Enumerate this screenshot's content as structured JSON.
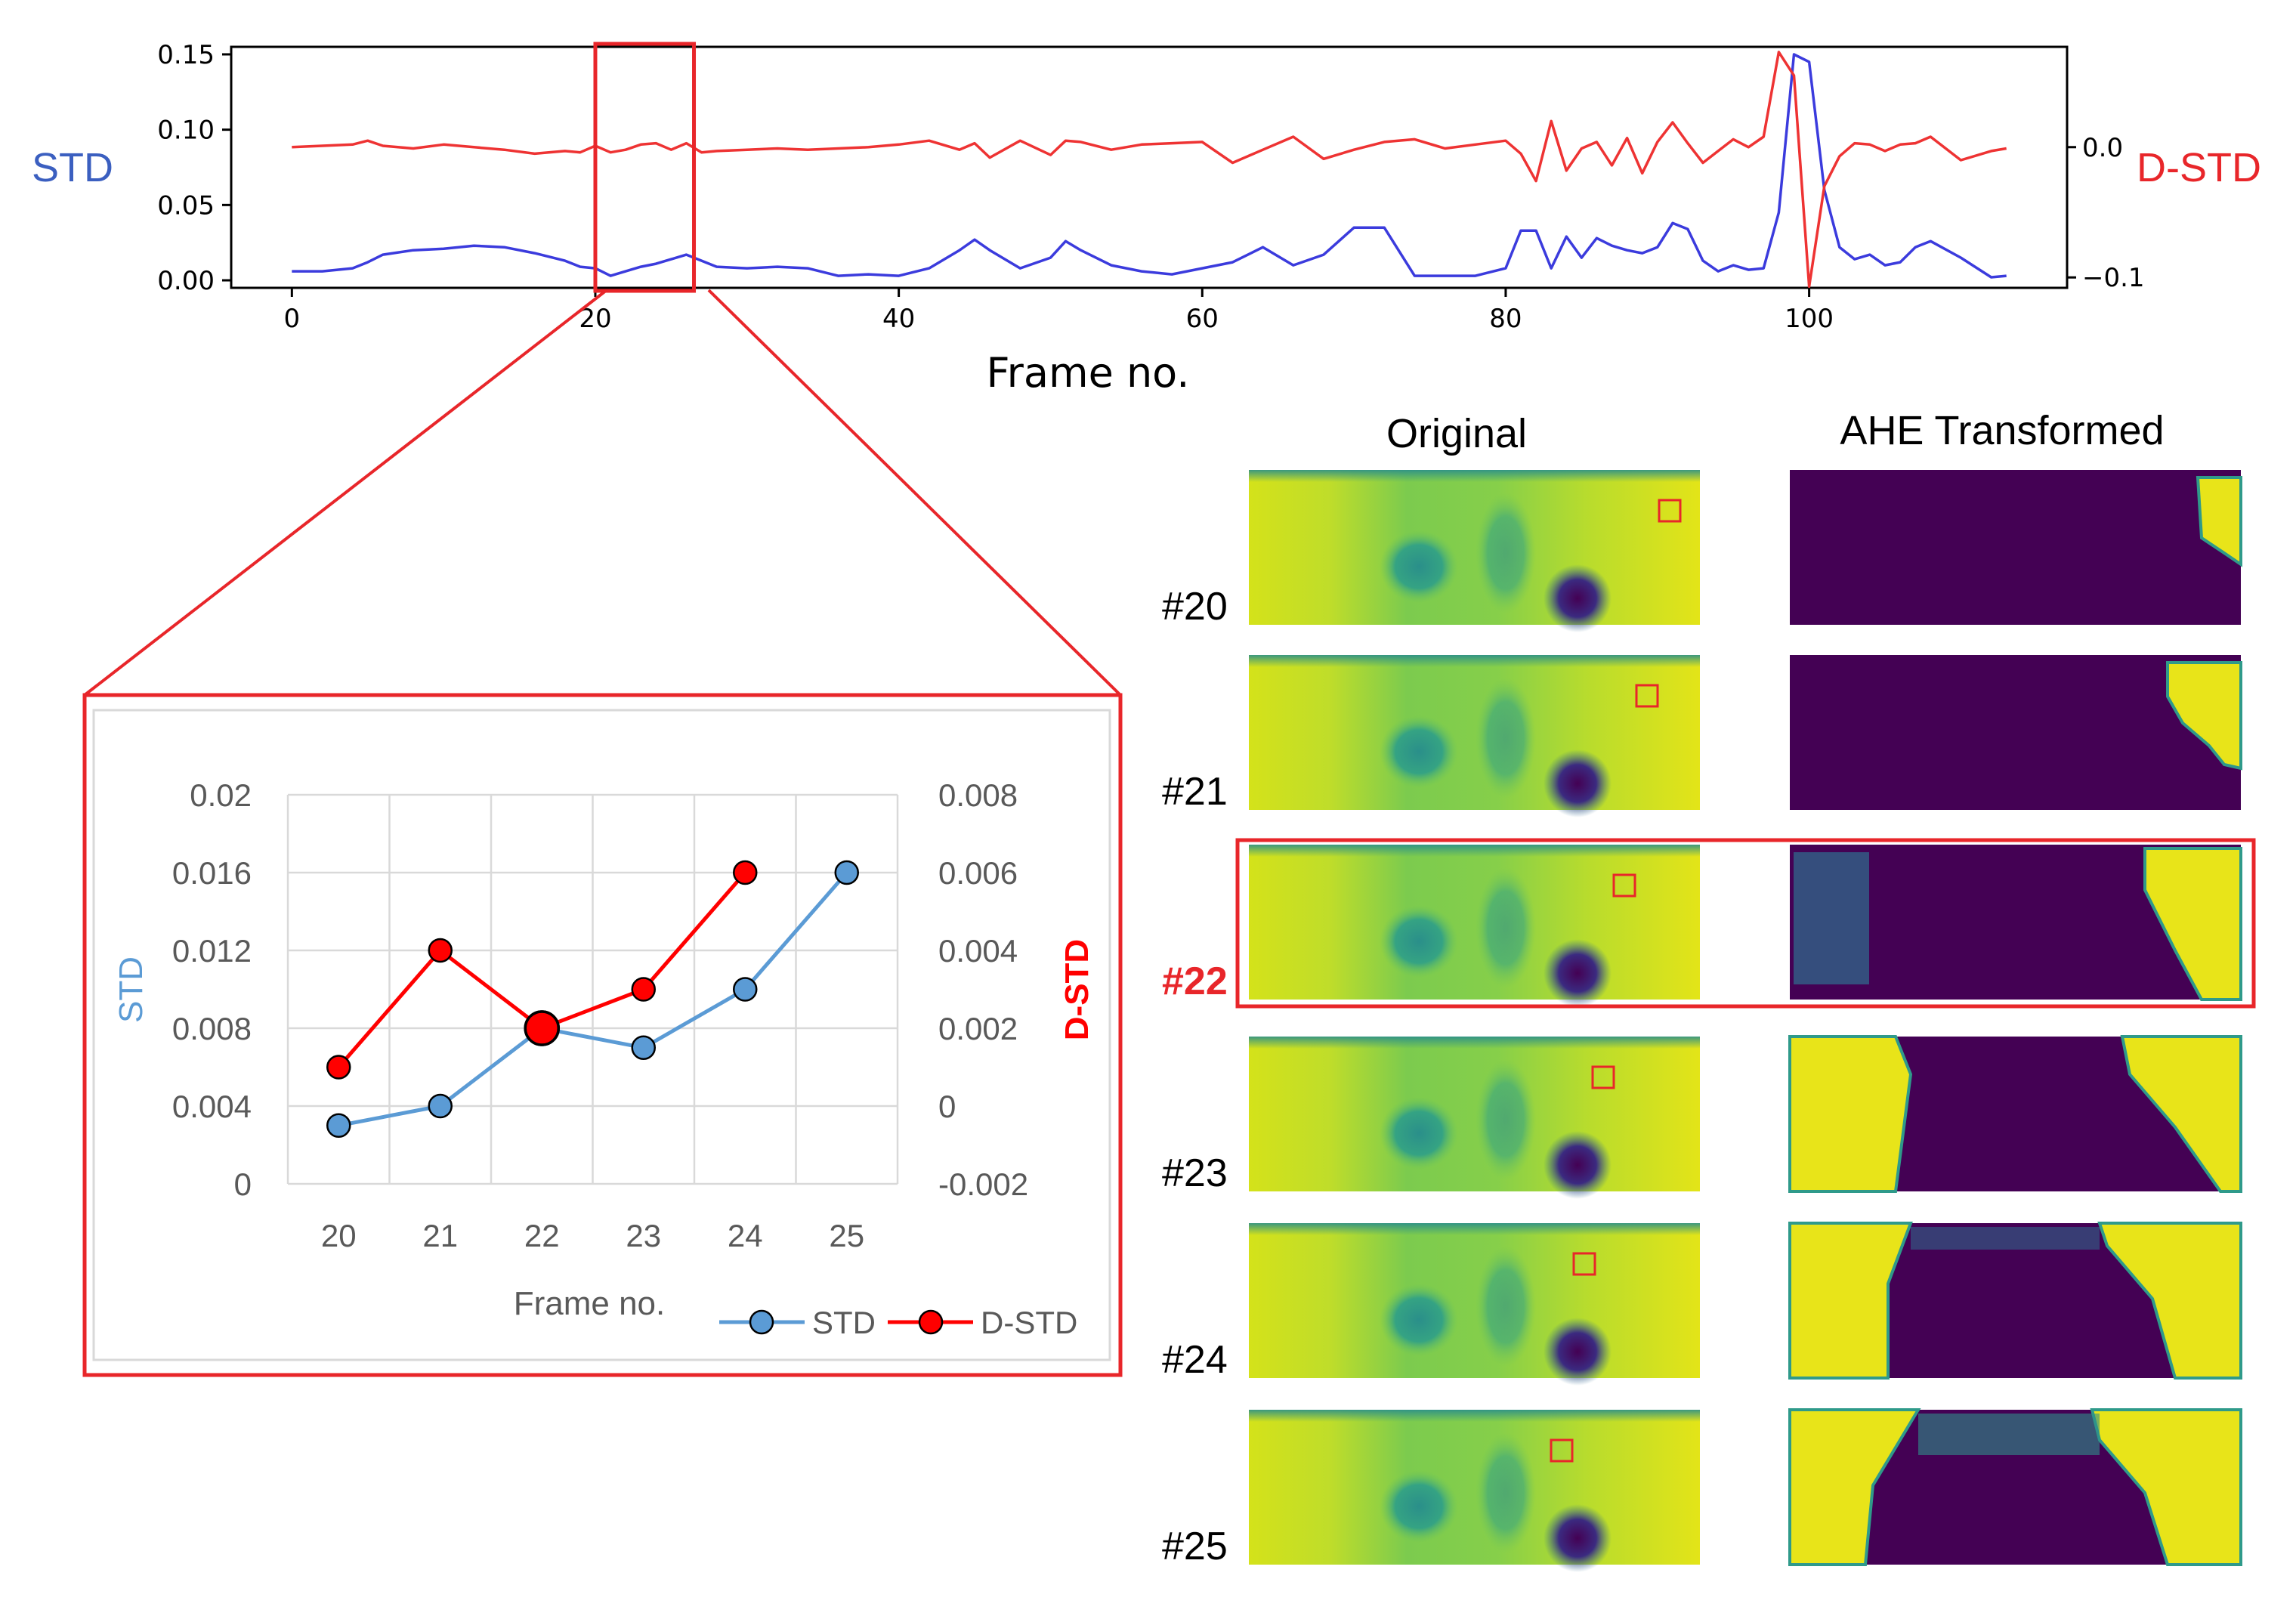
{
  "colors": {
    "std_top": "#3b3bdd",
    "dstd_top": "#ee3333",
    "std_inset": "#5b9bd5",
    "dstd_inset": "#ff0000",
    "highlight": "#e8262a",
    "viridis_dark": "#440154",
    "viridis_yellow": "#e8e419",
    "viridis_green": "#9ad43a",
    "viridis_teal": "#2f9a8a"
  },
  "chart_data": [
    {
      "type": "line",
      "xlabel": "Frame no.",
      "ylabel_left": "STD",
      "ylabel_right": "D-STD",
      "xlim": [
        -4,
        117
      ],
      "xticks": [
        "0",
        "20",
        "40",
        "60",
        "80",
        "100"
      ],
      "ylim_left": [
        -0.005,
        0.155
      ],
      "yticks_left": [
        "0.00",
        "0.05",
        "0.10",
        "0.15"
      ],
      "ylim_right": [
        -0.108,
        0.077
      ],
      "yticks_right": [
        "0.0",
        "−0.1"
      ],
      "highlight_range": [
        20,
        26.5
      ],
      "series": [
        {
          "name": "STD",
          "axis": "left",
          "x": [
            0,
            2,
            4,
            5,
            6,
            8,
            10,
            12,
            14,
            16,
            18,
            19,
            20,
            21,
            22,
            23,
            24,
            25,
            26,
            27,
            28,
            30,
            32,
            34,
            36,
            38,
            40,
            42,
            44,
            45,
            46,
            48,
            50,
            51,
            52,
            54,
            56,
            58,
            60,
            62,
            64,
            66,
            68,
            70,
            72,
            74,
            76,
            78,
            80,
            81,
            82,
            83,
            84,
            85,
            86,
            87,
            88,
            89,
            90,
            91,
            92,
            93,
            94,
            95,
            96,
            97,
            98,
            99,
            100,
            101,
            102,
            103,
            104,
            105,
            106,
            107,
            108,
            110,
            112,
            113
          ],
          "values": [
            0.006,
            0.006,
            0.008,
            0.012,
            0.017,
            0.02,
            0.021,
            0.023,
            0.022,
            0.018,
            0.013,
            0.009,
            0.008,
            0.003,
            0.006,
            0.009,
            0.011,
            0.014,
            0.017,
            0.013,
            0.009,
            0.008,
            0.009,
            0.008,
            0.003,
            0.004,
            0.003,
            0.008,
            0.02,
            0.027,
            0.02,
            0.008,
            0.015,
            0.026,
            0.02,
            0.01,
            0.006,
            0.004,
            0.008,
            0.012,
            0.022,
            0.01,
            0.017,
            0.035,
            0.035,
            0.003,
            0.003,
            0.003,
            0.008,
            0.033,
            0.033,
            0.008,
            0.029,
            0.015,
            0.028,
            0.023,
            0.02,
            0.018,
            0.022,
            0.038,
            0.034,
            0.013,
            0.006,
            0.01,
            0.007,
            0.008,
            0.045,
            0.15,
            0.145,
            0.06,
            0.022,
            0.014,
            0.017,
            0.01,
            0.012,
            0.022,
            0.026,
            0.015,
            0.002,
            0.003
          ]
        },
        {
          "name": "D-STD",
          "axis": "right",
          "x": [
            0,
            2,
            4,
            5,
            6,
            8,
            10,
            12,
            14,
            16,
            18,
            19,
            20,
            21,
            22,
            23,
            24,
            25,
            26,
            27,
            28,
            30,
            32,
            34,
            36,
            38,
            40,
            42,
            44,
            45,
            46,
            48,
            50,
            51,
            52,
            54,
            56,
            58,
            60,
            62,
            64,
            66,
            68,
            70,
            72,
            74,
            76,
            78,
            80,
            81,
            82,
            83,
            84,
            85,
            86,
            87,
            88,
            89,
            90,
            91,
            92,
            93,
            94,
            95,
            96,
            97,
            98,
            99,
            100,
            101,
            102,
            103,
            104,
            105,
            106,
            107,
            108,
            110,
            112,
            113
          ],
          "values": [
            0.0,
            0.001,
            0.002,
            0.005,
            0.001,
            -0.001,
            0.002,
            0.0,
            -0.002,
            -0.005,
            -0.003,
            -0.004,
            0.001,
            -0.004,
            -0.002,
            0.002,
            0.003,
            -0.002,
            0.003,
            -0.004,
            -0.003,
            -0.002,
            -0.001,
            -0.002,
            -0.001,
            0.0,
            0.002,
            0.005,
            -0.002,
            0.003,
            -0.008,
            0.005,
            -0.006,
            0.005,
            0.004,
            -0.002,
            0.002,
            0.003,
            0.004,
            -0.012,
            -0.002,
            0.008,
            -0.009,
            -0.002,
            0.004,
            0.006,
            -0.001,
            0.002,
            0.005,
            -0.005,
            -0.026,
            0.02,
            -0.018,
            -0.001,
            0.004,
            -0.014,
            0.007,
            -0.02,
            0.004,
            0.019,
            0.003,
            -0.012,
            -0.003,
            0.006,
            0.0,
            0.008,
            0.073,
            0.055,
            -0.107,
            -0.03,
            -0.007,
            0.003,
            0.002,
            -0.003,
            0.002,
            0.003,
            0.008,
            -0.01,
            -0.003,
            -0.001
          ]
        }
      ]
    },
    {
      "type": "line",
      "xlabel": "Frame no.",
      "ylabel_left": "STD",
      "ylabel_right": "D-STD",
      "categories": [
        "20",
        "21",
        "22",
        "23",
        "24",
        "25"
      ],
      "ylim_left": [
        0,
        0.02
      ],
      "yticks_left": [
        "0",
        "0.004",
        "0.008",
        "0.012",
        "0.016",
        "0.02"
      ],
      "ylim_right": [
        -0.002,
        0.008
      ],
      "yticks_right": [
        "-0.002",
        "0",
        "0.002",
        "0.004",
        "0.006",
        "0.008"
      ],
      "grid": true,
      "legend_position": "bottom-right",
      "highlight_point": 22,
      "series": [
        {
          "name": "STD",
          "axis": "left",
          "x": [
            20,
            21,
            22,
            23,
            24,
            25
          ],
          "values": [
            0.003,
            0.004,
            0.008,
            0.007,
            0.01,
            0.016
          ]
        },
        {
          "name": "D-STD",
          "axis": "right",
          "x": [
            20,
            21,
            22,
            23,
            24
          ],
          "values": [
            0.001,
            0.004,
            0.002,
            0.003,
            0.006
          ]
        }
      ]
    }
  ],
  "panel": {
    "col_original": "Original",
    "col_ahe": "AHE Transformed",
    "frames": [
      {
        "label": "#20",
        "highlight": false,
        "ahe": "a"
      },
      {
        "label": "#21",
        "highlight": false,
        "ahe": "b"
      },
      {
        "label": "#22",
        "highlight": true,
        "ahe": "c"
      },
      {
        "label": "#23",
        "highlight": false,
        "ahe": "d"
      },
      {
        "label": "#24",
        "highlight": false,
        "ahe": "e"
      },
      {
        "label": "#25",
        "highlight": false,
        "ahe": "f"
      }
    ]
  }
}
